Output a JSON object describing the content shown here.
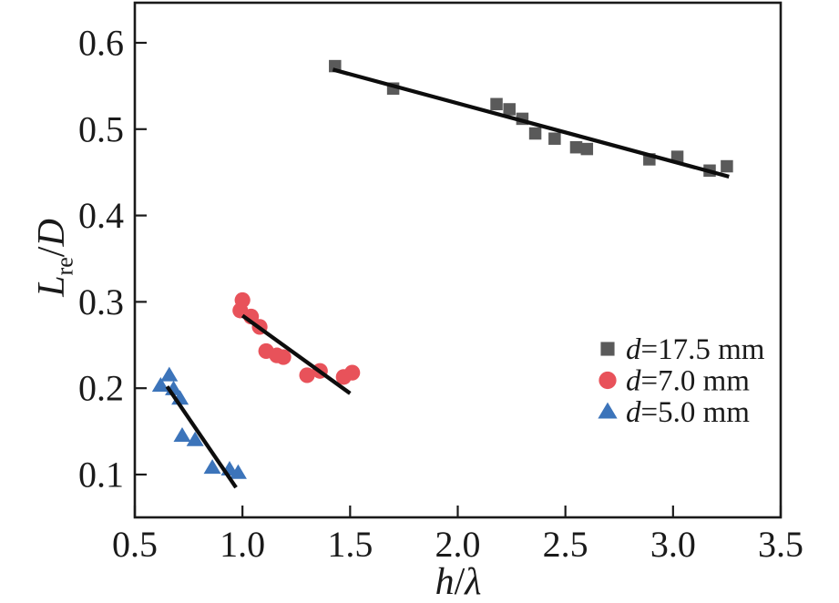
{
  "chart_data": {
    "type": "scatter",
    "title": "",
    "xlabel": "h/λ",
    "ylabel": "L_re/D",
    "xlabel_rich": [
      [
        "i",
        "h"
      ],
      [
        "n",
        "/"
      ],
      [
        "i",
        "λ"
      ]
    ],
    "ylabel_rich": [
      [
        "i",
        "L"
      ],
      [
        "sub",
        "re"
      ],
      [
        "n",
        "/"
      ],
      [
        "i",
        "D"
      ]
    ],
    "xlim": [
      0.5,
      3.5
    ],
    "ylim": [
      0.0504,
      0.6464
    ],
    "grid": false,
    "legend_position": "right-middle",
    "axis_color": "#1a1a1a",
    "fit_line_color": "#0d0d0d",
    "x_ticks": [
      {
        "v": 0.5,
        "label": "0.5"
      },
      {
        "v": 1.0,
        "label": "1.0"
      },
      {
        "v": 1.5,
        "label": "1.5"
      },
      {
        "v": 2.0,
        "label": "2.0"
      },
      {
        "v": 2.5,
        "label": "2.5"
      },
      {
        "v": 3.0,
        "label": "3.0"
      },
      {
        "v": 3.5,
        "label": "3.5"
      }
    ],
    "y_ticks": [
      {
        "v": 0.1,
        "label": "0.1"
      },
      {
        "v": 0.2,
        "label": "0.2"
      },
      {
        "v": 0.3,
        "label": "0.3"
      },
      {
        "v": 0.4,
        "label": "0.4"
      },
      {
        "v": 0.5,
        "label": "0.5"
      },
      {
        "v": 0.6,
        "label": "0.6"
      }
    ],
    "series": [
      {
        "name": "d=17.5 mm",
        "name_rich": [
          [
            "i",
            "d"
          ],
          [
            "n",
            "=17.5 mm"
          ]
        ],
        "marker": "square",
        "color": "#5a5a5a",
        "points": [
          [
            1.43,
            0.573
          ],
          [
            1.7,
            0.547
          ],
          [
            2.18,
            0.529
          ],
          [
            2.24,
            0.523
          ],
          [
            2.3,
            0.512
          ],
          [
            2.36,
            0.495
          ],
          [
            2.45,
            0.489
          ],
          [
            2.55,
            0.479
          ],
          [
            2.6,
            0.477
          ],
          [
            2.89,
            0.465
          ],
          [
            3.02,
            0.468
          ],
          [
            3.17,
            0.452
          ],
          [
            3.25,
            0.457
          ]
        ],
        "fit_line": [
          [
            1.42,
            0.569
          ],
          [
            3.26,
            0.445
          ]
        ]
      },
      {
        "name": "d=7.0 mm",
        "name_rich": [
          [
            "i",
            "d"
          ],
          [
            "n",
            "=7.0 mm"
          ]
        ],
        "marker": "circle",
        "color": "#e8525a",
        "points": [
          [
            1.0,
            0.302
          ],
          [
            0.99,
            0.29
          ],
          [
            1.04,
            0.283
          ],
          [
            1.08,
            0.271
          ],
          [
            1.11,
            0.243
          ],
          [
            1.16,
            0.238
          ],
          [
            1.19,
            0.236
          ],
          [
            1.3,
            0.215
          ],
          [
            1.36,
            0.22
          ],
          [
            1.47,
            0.213
          ],
          [
            1.51,
            0.218
          ]
        ],
        "fit_line": [
          [
            1.0,
            0.284
          ],
          [
            1.5,
            0.194
          ]
        ]
      },
      {
        "name": "d=5.0 mm",
        "name_rich": [
          [
            "i",
            "d"
          ],
          [
            "n",
            "=5.0 mm"
          ]
        ],
        "marker": "triangle",
        "color": "#3c74ba",
        "points": [
          [
            0.66,
            0.215
          ],
          [
            0.62,
            0.203
          ],
          [
            0.68,
            0.199
          ],
          [
            0.71,
            0.188
          ],
          [
            0.72,
            0.145
          ],
          [
            0.78,
            0.14
          ],
          [
            0.86,
            0.108
          ],
          [
            0.94,
            0.106
          ],
          [
            0.98,
            0.102
          ]
        ],
        "fit_line": [
          [
            0.65,
            0.202
          ],
          [
            0.97,
            0.085
          ]
        ]
      }
    ]
  }
}
